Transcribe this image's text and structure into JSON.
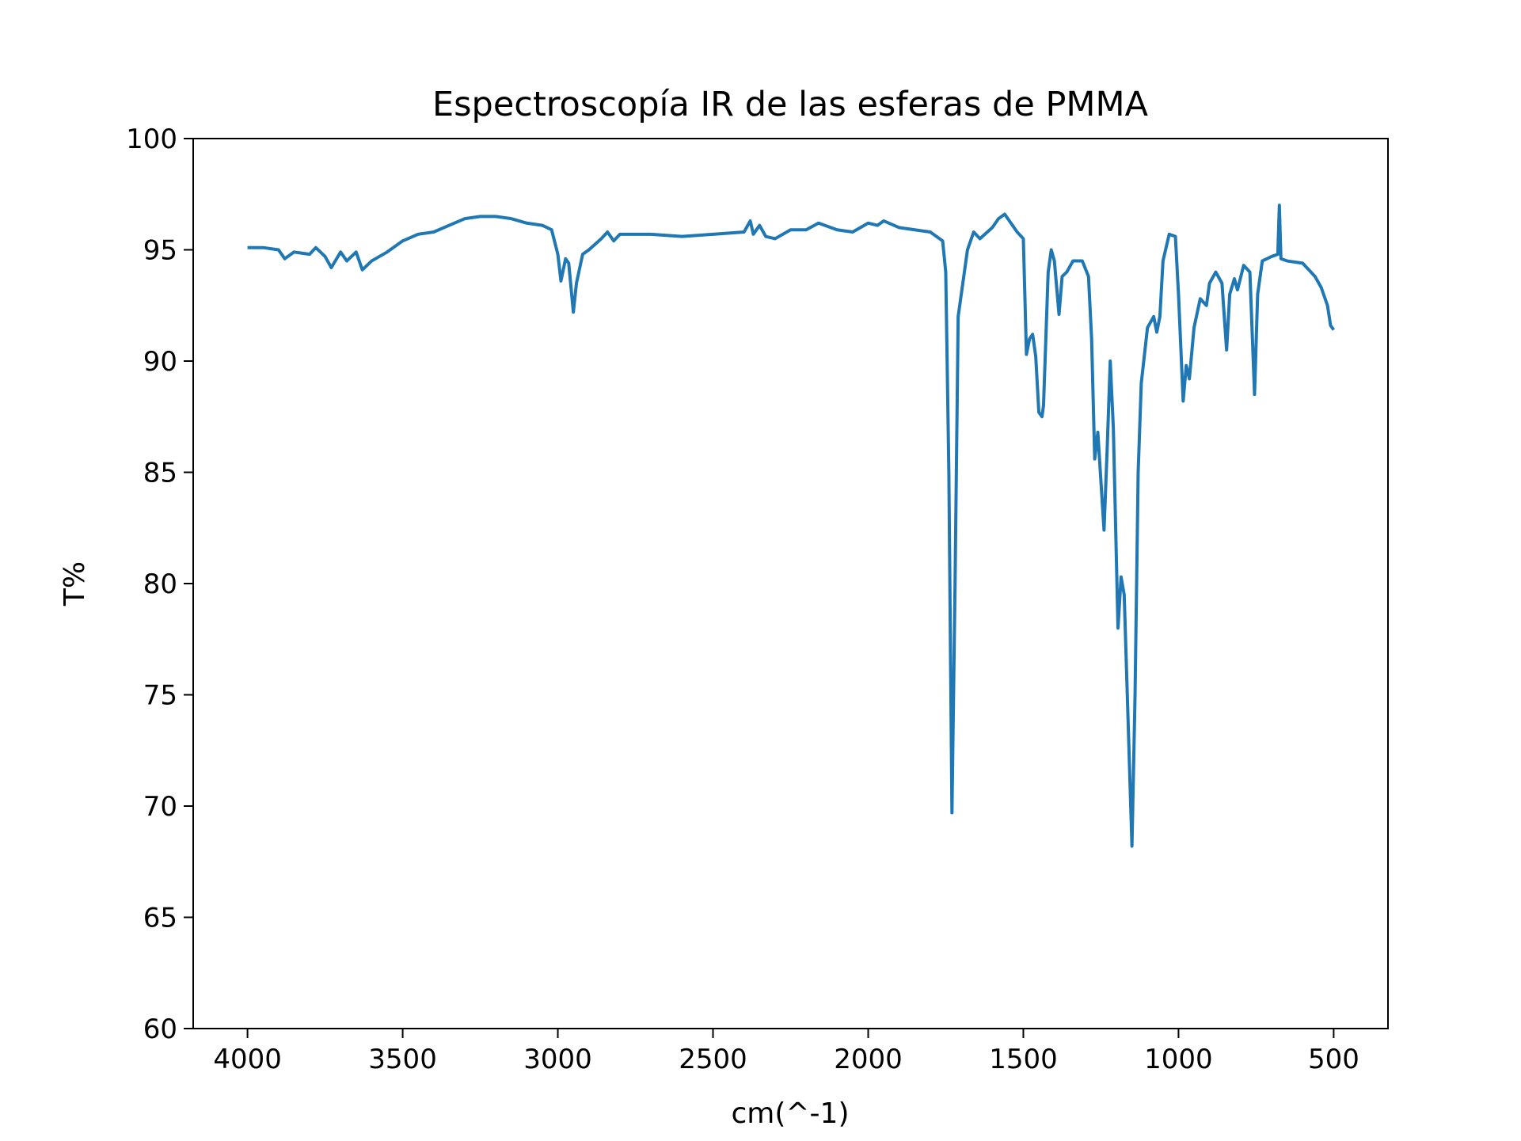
{
  "chart_data": {
    "type": "line",
    "title": "Espectroscopía IR de las esferas de PMMA",
    "x_label": "cm(^-1)",
    "y_label": "T%",
    "x": [
      4000,
      3950,
      3900,
      3880,
      3850,
      3800,
      3780,
      3750,
      3730,
      3700,
      3680,
      3650,
      3630,
      3600,
      3550,
      3500,
      3450,
      3400,
      3350,
      3300,
      3250,
      3200,
      3150,
      3100,
      3050,
      3020,
      3000,
      2990,
      2975,
      2965,
      2950,
      2940,
      2920,
      2900,
      2860,
      2840,
      2820,
      2800,
      2700,
      2600,
      2500,
      2400,
      2380,
      2370,
      2350,
      2330,
      2300,
      2250,
      2200,
      2160,
      2100,
      2050,
      2000,
      1970,
      1950,
      1900,
      1850,
      1800,
      1760,
      1750,
      1740,
      1730,
      1720,
      1710,
      1690,
      1680,
      1660,
      1640,
      1600,
      1580,
      1560,
      1540,
      1520,
      1500,
      1490,
      1480,
      1470,
      1460,
      1450,
      1440,
      1435,
      1420,
      1410,
      1400,
      1385,
      1375,
      1360,
      1340,
      1310,
      1290,
      1280,
      1270,
      1260,
      1240,
      1230,
      1220,
      1210,
      1195,
      1185,
      1175,
      1165,
      1150,
      1140,
      1130,
      1120,
      1100,
      1080,
      1070,
      1060,
      1050,
      1030,
      1010,
      1000,
      985,
      975,
      965,
      950,
      930,
      910,
      900,
      880,
      860,
      845,
      835,
      820,
      810,
      790,
      770,
      755,
      745,
      730,
      700,
      680,
      675,
      670,
      650,
      600,
      560,
      540,
      520,
      510,
      500
    ],
    "series": [
      {
        "name": "T%",
        "color": "#1f77b4",
        "values": [
          95.1,
          95.1,
          95.0,
          94.6,
          94.9,
          94.8,
          95.1,
          94.7,
          94.2,
          94.9,
          94.5,
          94.9,
          94.1,
          94.5,
          94.9,
          95.4,
          95.7,
          95.8,
          96.1,
          96.4,
          96.5,
          96.5,
          96.4,
          96.2,
          96.1,
          95.9,
          94.8,
          93.6,
          94.6,
          94.4,
          92.2,
          93.5,
          94.8,
          95.0,
          95.5,
          95.8,
          95.4,
          95.7,
          95.7,
          95.6,
          95.7,
          95.8,
          96.3,
          95.7,
          96.1,
          95.6,
          95.5,
          95.9,
          95.9,
          96.2,
          95.9,
          95.8,
          96.2,
          96.1,
          96.3,
          96.0,
          95.9,
          95.8,
          95.4,
          94.0,
          85.0,
          69.7,
          80.0,
          92.0,
          94.0,
          95.0,
          95.8,
          95.5,
          96.0,
          96.4,
          96.6,
          96.2,
          95.8,
          95.5,
          90.3,
          91.0,
          91.2,
          90.2,
          87.7,
          87.5,
          88.0,
          94.0,
          95.0,
          94.5,
          92.1,
          93.8,
          94.0,
          94.5,
          94.5,
          93.8,
          91.0,
          85.6,
          86.8,
          82.4,
          86.0,
          90.0,
          87.0,
          78.0,
          80.3,
          79.5,
          75.0,
          68.2,
          75.0,
          85.0,
          89.0,
          91.5,
          92.0,
          91.3,
          92.0,
          94.5,
          95.7,
          95.6,
          93.0,
          88.2,
          89.8,
          89.2,
          91.5,
          92.8,
          92.5,
          93.5,
          94.0,
          93.5,
          90.5,
          93.0,
          93.7,
          93.2,
          94.3,
          94.0,
          88.5,
          93.0,
          94.5,
          94.7,
          94.8,
          97.0,
          94.6,
          94.5,
          94.4,
          93.8,
          93.3,
          92.5,
          91.6,
          91.4
        ]
      }
    ],
    "xlim": [
      4175,
      325
    ],
    "xticks": [
      4000,
      3500,
      3000,
      2500,
      2000,
      1500,
      1000,
      500
    ],
    "ylim": [
      60,
      100
    ],
    "yticks": [
      60,
      65,
      70,
      75,
      80,
      85,
      90,
      95,
      100
    ]
  }
}
